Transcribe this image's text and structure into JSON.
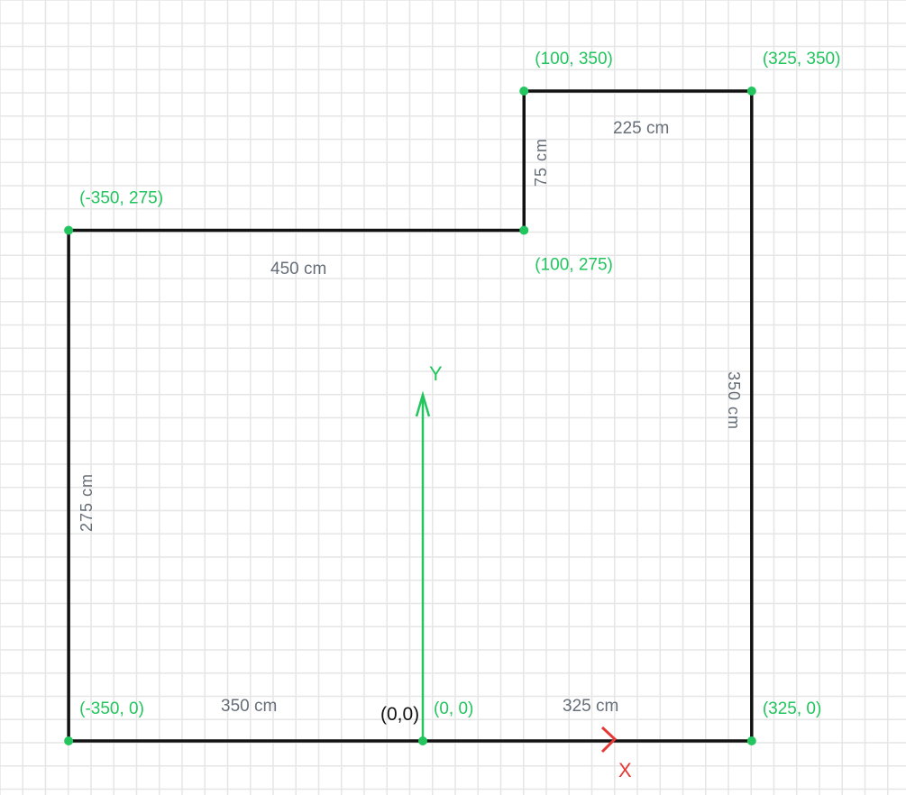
{
  "colors": {
    "grid": "#e6e6e6",
    "wall": "#111111",
    "point": "#22c55e",
    "point_label": "#22c55e",
    "dimension_label": "#666e78",
    "y_axis": "#22c55e",
    "x_axis": "#e53935",
    "origin_label": "#111111"
  },
  "points": [
    {
      "x": -350,
      "y": 0,
      "label": "(-350, 0)"
    },
    {
      "x": 0,
      "y": 0,
      "label": "(0, 0)"
    },
    {
      "x": 325,
      "y": 0,
      "label": "(325, 0)"
    },
    {
      "x": 325,
      "y": 350,
      "label": "(325, 350)"
    },
    {
      "x": 100,
      "y": 350,
      "label": "(100, 350)"
    },
    {
      "x": 100,
      "y": 275,
      "label": "(100, 275)"
    },
    {
      "x": -350,
      "y": 275,
      "label": "(-350, 275)"
    }
  ],
  "dimensions": [
    {
      "text": "350 cm"
    },
    {
      "text": "325 cm"
    },
    {
      "text": "350 cm"
    },
    {
      "text": "225 cm"
    },
    {
      "text": "75 cm"
    },
    {
      "text": "450 cm"
    },
    {
      "text": "275 cm"
    }
  ],
  "origin_label": "(0,0)",
  "axes": {
    "x_label": "X",
    "y_label": "Y"
  }
}
